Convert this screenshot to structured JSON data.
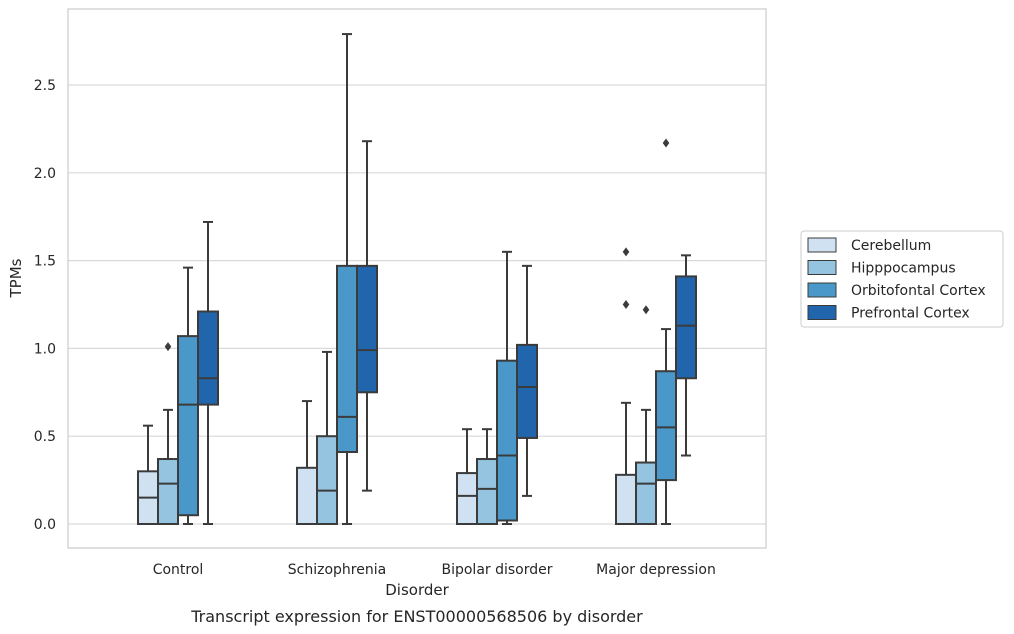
{
  "chart_data": {
    "type": "box",
    "caption": "Transcript expression for ENST00000568506 by disorder",
    "xlabel": "Disorder",
    "ylabel": "TPMs",
    "ylim": [
      -0.14,
      2.95
    ],
    "yticks": [
      0.0,
      0.5,
      1.0,
      1.5,
      2.0,
      2.5
    ],
    "ytick_labels": [
      "0.0",
      "0.5",
      "1.0",
      "1.5",
      "2.0",
      "2.5"
    ],
    "grid": "horizontal",
    "legend_position": "right",
    "categories": [
      "Control",
      "Schizophrenia",
      "Bipolar disorder",
      "Major depression"
    ],
    "series": [
      {
        "name": "Cerebellum",
        "color": "#d0e1f2",
        "boxes": [
          {
            "q1": 0.0,
            "median": 0.15,
            "q3": 0.3,
            "whisker_low": 0.0,
            "whisker_high": 0.56,
            "outliers": []
          },
          {
            "q1": 0.0,
            "median": 0.0,
            "q3": 0.32,
            "whisker_low": 0.0,
            "whisker_high": 0.7,
            "outliers": []
          },
          {
            "q1": 0.0,
            "median": 0.16,
            "q3": 0.29,
            "whisker_low": 0.0,
            "whisker_high": 0.54,
            "outliers": []
          },
          {
            "q1": 0.0,
            "median": 0.0,
            "q3": 0.28,
            "whisker_low": 0.0,
            "whisker_high": 0.69,
            "outliers": [
              1.25,
              1.55
            ]
          }
        ]
      },
      {
        "name": "Hipppocampus",
        "color": "#94c4df",
        "boxes": [
          {
            "q1": 0.0,
            "median": 0.23,
            "q3": 0.37,
            "whisker_low": 0.0,
            "whisker_high": 0.65,
            "outliers": [
              1.01
            ]
          },
          {
            "q1": 0.0,
            "median": 0.19,
            "q3": 0.5,
            "whisker_low": 0.0,
            "whisker_high": 0.98,
            "outliers": []
          },
          {
            "q1": 0.0,
            "median": 0.2,
            "q3": 0.37,
            "whisker_low": 0.0,
            "whisker_high": 0.54,
            "outliers": []
          },
          {
            "q1": 0.0,
            "median": 0.23,
            "q3": 0.35,
            "whisker_low": 0.0,
            "whisker_high": 0.65,
            "outliers": [
              1.22
            ]
          }
        ]
      },
      {
        "name": "Orbitofontal Cortex",
        "color": "#4a98c9",
        "boxes": [
          {
            "q1": 0.05,
            "median": 0.68,
            "q3": 1.07,
            "whisker_low": 0.0,
            "whisker_high": 1.46,
            "outliers": []
          },
          {
            "q1": 0.41,
            "median": 0.61,
            "q3": 1.47,
            "whisker_low": 0.0,
            "whisker_high": 2.79,
            "outliers": []
          },
          {
            "q1": 0.02,
            "median": 0.39,
            "q3": 0.93,
            "whisker_low": 0.0,
            "whisker_high": 1.55,
            "outliers": []
          },
          {
            "q1": 0.25,
            "median": 0.55,
            "q3": 0.87,
            "whisker_low": 0.0,
            "whisker_high": 1.11,
            "outliers": [
              2.17
            ]
          }
        ]
      },
      {
        "name": "Prefrontal Cortex",
        "color": "#2166ac",
        "boxes": [
          {
            "q1": 0.68,
            "median": 0.83,
            "q3": 1.21,
            "whisker_low": 0.0,
            "whisker_high": 1.72,
            "outliers": []
          },
          {
            "q1": 0.75,
            "median": 0.99,
            "q3": 1.47,
            "whisker_low": 0.19,
            "whisker_high": 2.18,
            "outliers": []
          },
          {
            "q1": 0.49,
            "median": 0.78,
            "q3": 1.02,
            "whisker_low": 0.16,
            "whisker_high": 1.47,
            "outliers": []
          },
          {
            "q1": 0.83,
            "median": 1.13,
            "q3": 1.41,
            "whisker_low": 0.39,
            "whisker_high": 1.53,
            "outliers": []
          }
        ]
      }
    ]
  }
}
